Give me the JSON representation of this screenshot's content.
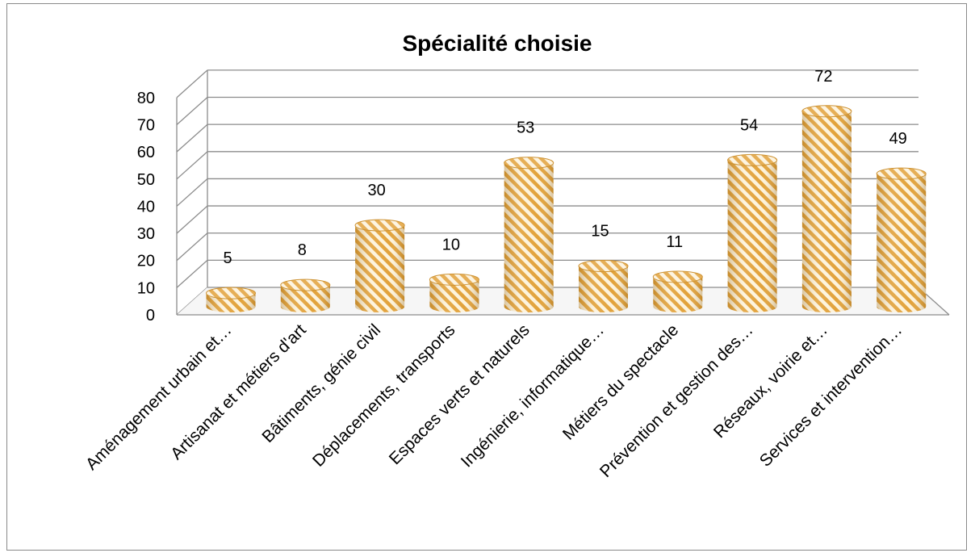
{
  "chart_data": {
    "type": "bar",
    "title": "Spécialité choisie",
    "xlabel": "",
    "ylabel": "",
    "ylim": [
      0,
      80
    ],
    "yticks": [
      0,
      10,
      20,
      30,
      40,
      50,
      60,
      70,
      80
    ],
    "grid": true,
    "legend": "none",
    "categories": [
      "Aménagement urbain et…",
      "Artisanat et métiers d'art",
      "Bâtiments, génie civil",
      "Déplacements, transports",
      "Espaces verts et naturels",
      "Ingénierie, informatique…",
      "Métiers du spectacle",
      "Prévention et gestion des…",
      "Réseaux, voirie et…",
      "Services et intervention…"
    ],
    "values": [
      5,
      8,
      30,
      10,
      53,
      15,
      11,
      54,
      72,
      49
    ],
    "colors": {
      "bar_light": "#fdf3dc",
      "bar_dark": "#e2a23a",
      "bar_edge": "#c98a24",
      "grid": "#8c8c8c",
      "text": "#000000"
    }
  }
}
